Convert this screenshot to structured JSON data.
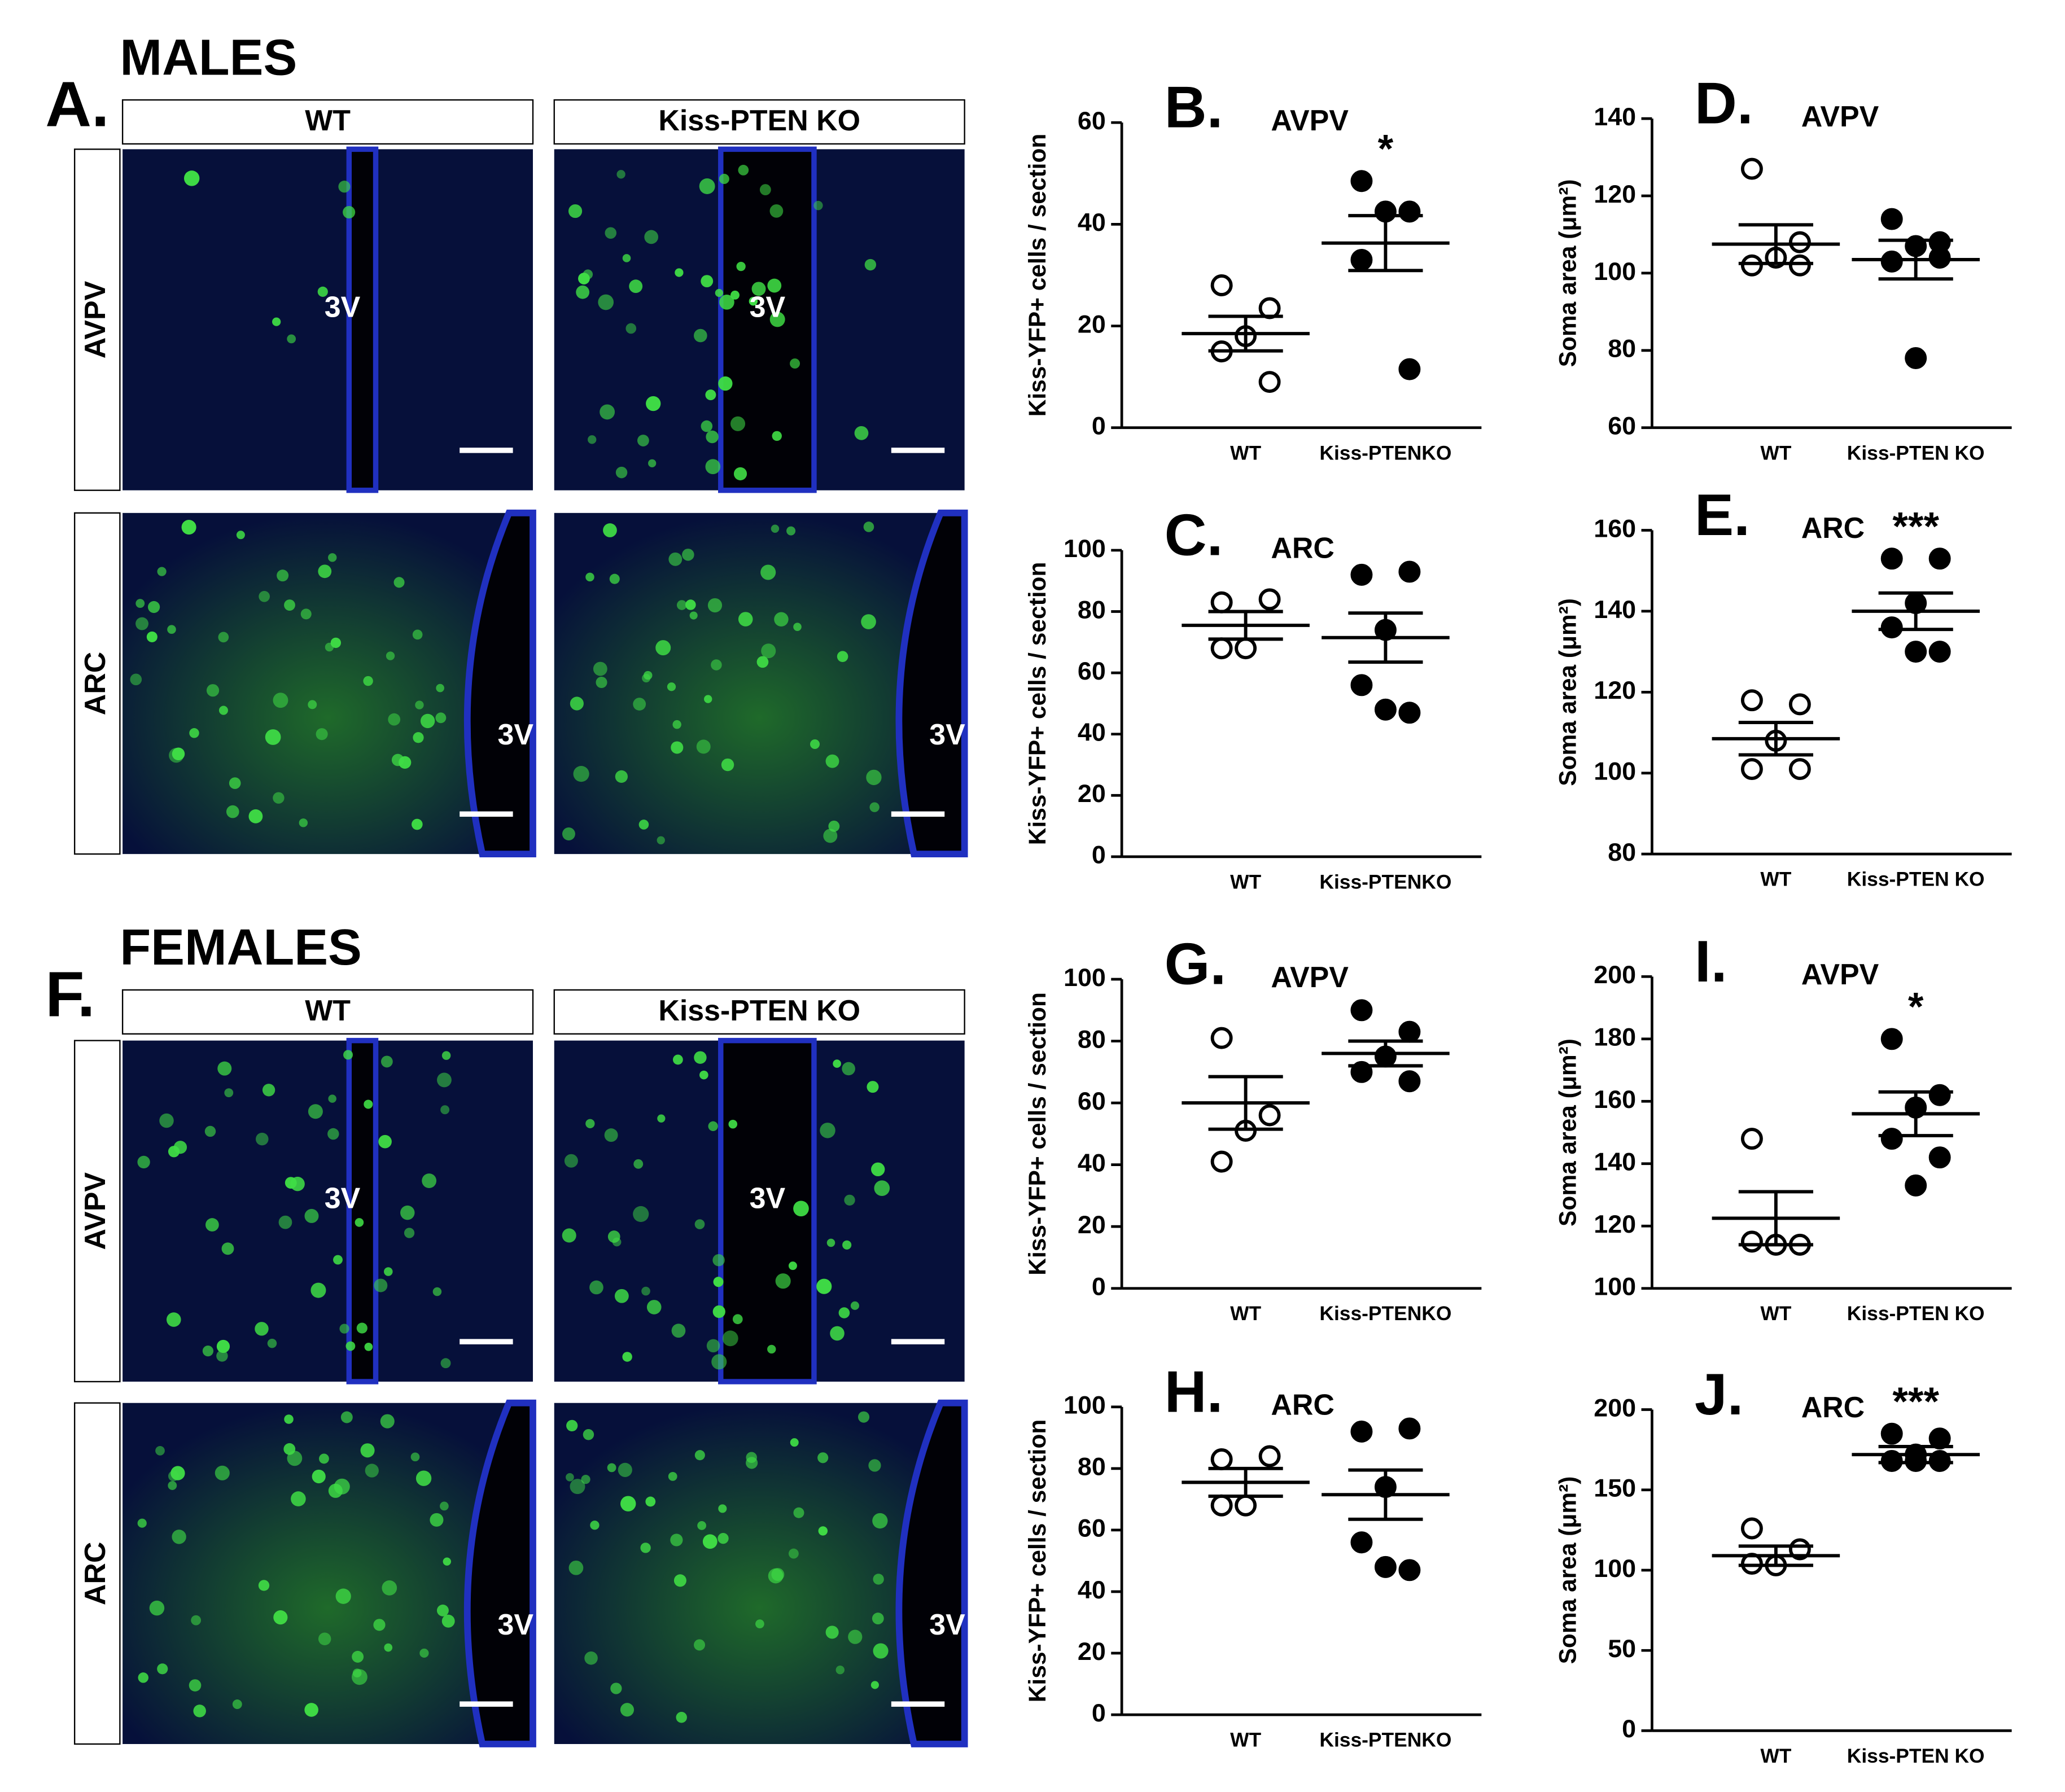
{
  "figure": {
    "sections": [
      {
        "letter": "A.",
        "title": "MALES",
        "columns": [
          "WT",
          "Kiss-PTEN KO"
        ],
        "rows": [
          "AVPV",
          "ARC"
        ],
        "ventricle_labels": [
          "3V",
          "3V",
          "3V",
          "3V"
        ]
      },
      {
        "letter": "F.",
        "title": "FEMALES",
        "columns": [
          "WT",
          "Kiss-PTEN KO"
        ],
        "rows": [
          "AVPV",
          "ARC"
        ],
        "ventricle_labels": [
          "3V",
          "3V",
          "3V",
          "3V"
        ]
      }
    ]
  },
  "chart_data": [
    {
      "type": "dot",
      "label": "B.",
      "title": "AVPV",
      "y_label": "Kiss-YFP+ cells / section",
      "categories": [
        "WT",
        "Kiss-PTENKO"
      ],
      "groups": [
        {
          "marker": "open",
          "values": [
            28,
            23.5,
            18,
            15,
            9
          ],
          "mean": 18.5,
          "sem": 3.4
        },
        {
          "marker": "filled",
          "values": [
            48.5,
            42.5,
            42.5,
            33,
            11.5
          ],
          "mean": 36.3,
          "sem": 5.4
        }
      ],
      "annotation": "*",
      "ylim": [
        0,
        60
      ],
      "yticks": [
        0,
        20,
        40,
        60
      ]
    },
    {
      "type": "dot",
      "label": "C.",
      "title": "ARC",
      "y_label": "Kiss-YFP+ cells / section",
      "categories": [
        "WT",
        "Kiss-PTENKO"
      ],
      "groups": [
        {
          "marker": "open",
          "values": [
            83,
            84,
            68,
            68
          ],
          "mean": 75.5,
          "sem": 4.5
        },
        {
          "marker": "filled",
          "values": [
            92,
            93,
            74,
            56,
            47,
            48
          ],
          "mean": 71.5,
          "sem": 8
        }
      ],
      "ylim": [
        0,
        100
      ],
      "yticks": [
        0,
        20,
        40,
        60,
        80,
        100
      ]
    },
    {
      "type": "dot",
      "label": "D.",
      "title": "AVPV",
      "y_label": "Soma area (μm²)",
      "categories": [
        "WT",
        "Kiss-PTEN KO"
      ],
      "groups": [
        {
          "marker": "open",
          "values": [
            127,
            108,
            104,
            102,
            102
          ],
          "mean": 107.5,
          "sem": 5
        },
        {
          "marker": "filled",
          "values": [
            114,
            108,
            107,
            103,
            104,
            78
          ],
          "mean": 103.5,
          "sem": 5
        }
      ],
      "ylim": [
        60,
        140
      ],
      "yticks": [
        60,
        80,
        100,
        120,
        140
      ]
    },
    {
      "type": "dot",
      "label": "E.",
      "title": "ARC",
      "y_label": "Soma area (μm²)",
      "categories": [
        "WT",
        "Kiss-PTEN KO"
      ],
      "groups": [
        {
          "marker": "open",
          "values": [
            118,
            117,
            108,
            101,
            101
          ],
          "mean": 108.5,
          "sem": 4
        },
        {
          "marker": "filled",
          "values": [
            153,
            153,
            142,
            136,
            130,
            130
          ],
          "mean": 140,
          "sem": 4.5
        }
      ],
      "annotation": "***",
      "ylim": [
        80,
        160
      ],
      "yticks": [
        80,
        100,
        120,
        140,
        160
      ]
    },
    {
      "type": "dot",
      "label": "G.",
      "title": "AVPV",
      "y_label": "Kiss-YFP+ cells / section",
      "categories": [
        "WT",
        "Kiss-PTENKO"
      ],
      "groups": [
        {
          "marker": "open",
          "values": [
            81,
            56,
            51,
            41
          ],
          "mean": 60,
          "sem": 8.5
        },
        {
          "marker": "filled",
          "values": [
            90,
            83,
            75,
            70,
            67
          ],
          "mean": 76,
          "sem": 4
        }
      ],
      "ylim": [
        0,
        100
      ],
      "yticks": [
        0,
        20,
        40,
        60,
        80,
        100
      ]
    },
    {
      "type": "dot",
      "label": "I.",
      "title": "AVPV",
      "y_label": "Soma area (μm²)",
      "categories": [
        "WT",
        "Kiss-PTEN KO"
      ],
      "groups": [
        {
          "marker": "open",
          "values": [
            148,
            114,
            114,
            115
          ],
          "mean": 122.5,
          "sem": 8.5
        },
        {
          "marker": "filled",
          "values": [
            180,
            162,
            158,
            148,
            142,
            133
          ],
          "mean": 156,
          "sem": 7
        }
      ],
      "annotation": "*",
      "ylim": [
        100,
        200
      ],
      "yticks": [
        100,
        120,
        140,
        160,
        180,
        200
      ]
    },
    {
      "type": "dot",
      "label": "H.",
      "title": "ARC",
      "y_label": "Kiss-YFP+ cells / section",
      "categories": [
        "WT",
        "Kiss-PTENKO"
      ],
      "groups": [
        {
          "marker": "open",
          "values": [
            83,
            84,
            68,
            68
          ],
          "mean": 75.5,
          "sem": 4.5
        },
        {
          "marker": "filled",
          "values": [
            92,
            93,
            74,
            56,
            47,
            48
          ],
          "mean": 71.5,
          "sem": 8
        }
      ],
      "ylim": [
        0,
        100
      ],
      "yticks": [
        0,
        20,
        40,
        60,
        80,
        100
      ]
    },
    {
      "type": "dot",
      "label": "J.",
      "title": "ARC",
      "y_label": "Soma area (μm²)",
      "categories": [
        "WT",
        "Kiss-PTEN KO"
      ],
      "groups": [
        {
          "marker": "open",
          "values": [
            126,
            113,
            103,
            104
          ],
          "mean": 109,
          "sem": 6
        },
        {
          "marker": "filled",
          "values": [
            185,
            182,
            172,
            168,
            168,
            168
          ],
          "mean": 172,
          "sem": 5
        }
      ],
      "annotation": "***",
      "ylim": [
        0,
        200
      ],
      "yticks": [
        0,
        50,
        100,
        150,
        200
      ]
    }
  ]
}
